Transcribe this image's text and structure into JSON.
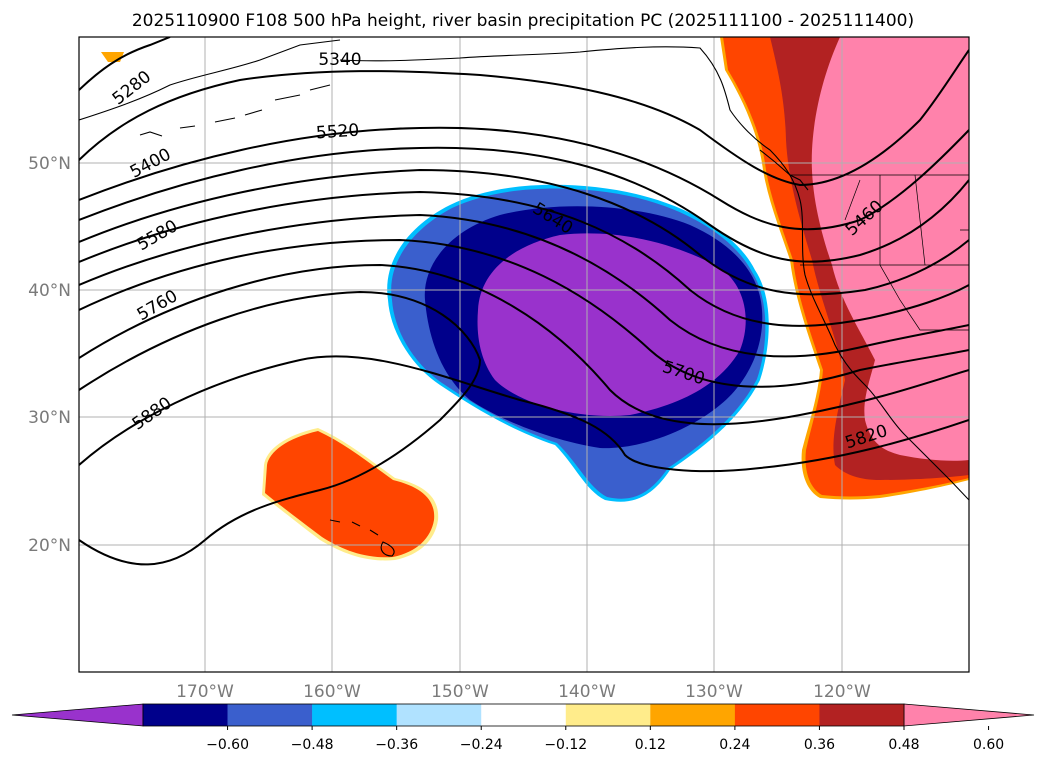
{
  "title": "2025110900 F108 500 hPa height, river basin precipitation PC (2025111100 - 2025111400)",
  "map": {
    "lat_labels": [
      "50°N",
      "40°N",
      "30°N",
      "20°N"
    ],
    "lon_labels": [
      "170°W",
      "160°W",
      "150°W",
      "140°W",
      "130°W",
      "120°W"
    ]
  },
  "contour_labels": [
    "5280",
    "5340",
    "5400",
    "5520",
    "5580",
    "5760",
    "5880",
    "5640",
    "5700",
    "5460",
    "5820"
  ],
  "colorbar": {
    "ticks": [
      "−0.60",
      "−0.48",
      "−0.36",
      "−0.24",
      "−0.12",
      "0.12",
      "0.24",
      "0.36",
      "0.48",
      "0.60"
    ],
    "colors": [
      "#9932CC",
      "#00008B",
      "#3A5FCD",
      "#00BFFF",
      "#B0E2FF",
      "#FFFFFF",
      "#FFEC8B",
      "#FFA500",
      "#FF4500",
      "#B22222",
      "#FF82AB"
    ]
  }
}
